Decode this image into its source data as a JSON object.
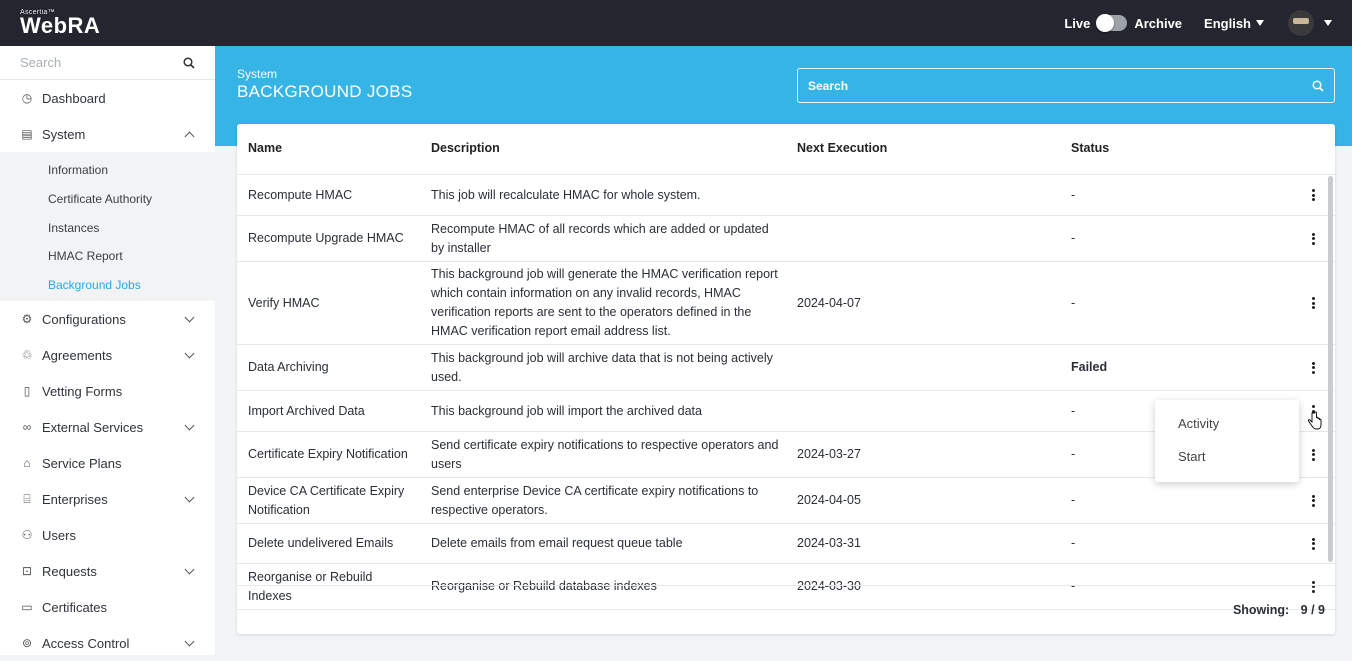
{
  "app": {
    "brand_small": "Ascertia™",
    "brand": "WebRA"
  },
  "topbar": {
    "live": "Live",
    "archive": "Archive",
    "language": "English"
  },
  "sidebar": {
    "search_placeholder": "Search",
    "items": [
      {
        "label": "Dashboard",
        "icon": "dashboard-icon"
      },
      {
        "label": "System",
        "icon": "system-icon"
      },
      {
        "label": "Configurations",
        "icon": "gear-icon"
      },
      {
        "label": "Agreements",
        "icon": "handshake-icon"
      },
      {
        "label": "Vetting Forms",
        "icon": "form-icon"
      },
      {
        "label": "External Services",
        "icon": "link-icon"
      },
      {
        "label": "Service Plans",
        "icon": "plans-icon"
      },
      {
        "label": "Enterprises",
        "icon": "building-icon"
      },
      {
        "label": "Users",
        "icon": "user-icon"
      },
      {
        "label": "Requests",
        "icon": "requests-icon"
      },
      {
        "label": "Certificates",
        "icon": "certificate-icon"
      },
      {
        "label": "Access Control",
        "icon": "lock-icon"
      }
    ],
    "system_sub": [
      "Information",
      "Certificate Authority",
      "Instances",
      "HMAC Report",
      "Background Jobs"
    ]
  },
  "page": {
    "breadcrumb": "System",
    "title": "BACKGROUND JOBS",
    "search_placeholder": "Search"
  },
  "table": {
    "headers": {
      "name": "Name",
      "description": "Description",
      "next": "Next Execution",
      "status": "Status"
    },
    "rows": [
      {
        "name": "Recompute HMAC",
        "description": "This job will recalculate HMAC for whole system.",
        "next": "",
        "status": "-"
      },
      {
        "name": "Recompute Upgrade HMAC",
        "description": "Recompute HMAC of all records which are added or updated by installer",
        "next": "",
        "status": "-"
      },
      {
        "name": "Verify HMAC",
        "description": "This background job will generate the HMAC verification report which contain information on any invalid records, HMAC verification reports are sent to the operators defined in the HMAC verification report email address list.",
        "next": "2024-04-07",
        "status": "-"
      },
      {
        "name": "Data Archiving",
        "description": "This background job will archive data that is not being actively used.",
        "next": "",
        "status": "Failed"
      },
      {
        "name": "Import Archived Data",
        "description": "This background job will import the archived data",
        "next": "",
        "status": "-"
      },
      {
        "name": "Certificate Expiry Notification",
        "description": "Send certificate expiry notifications to respective operators and users",
        "next": "2024-03-27",
        "status": "-"
      },
      {
        "name": "Device CA Certificate Expiry Notification",
        "description": "Send enterprise Device CA certificate expiry notifications to respective operators.",
        "next": "2024-04-05",
        "status": "-"
      },
      {
        "name": "Delete undelivered Emails",
        "description": "Delete emails from email request queue table",
        "next": "2024-03-31",
        "status": "-"
      },
      {
        "name": "Reorganise or Rebuild Indexes",
        "description": "Reorganise or Rebuild database indexes",
        "next": "2024-03-30",
        "status": "-"
      }
    ],
    "footer_label": "Showing:",
    "footer_count": "9 / 9"
  },
  "context_menu": [
    "Activity",
    "Start"
  ]
}
